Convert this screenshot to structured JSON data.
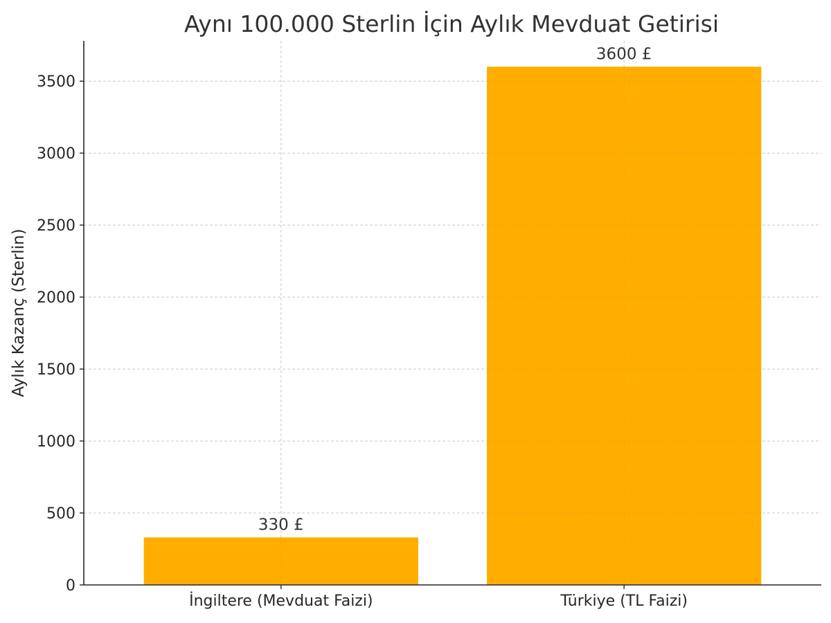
{
  "chart_data": {
    "type": "bar",
    "title": "Aynı 100.000 Sterlin İçin Aylık Mevduat Getirisi",
    "xlabel": "",
    "ylabel": "Aylık Kazanç (Sterlin)",
    "categories": [
      "İngiltere (Mevduat Faizi)",
      "Türkiye (TL Faizi)"
    ],
    "values": [
      330,
      3600
    ],
    "data_labels": [
      "330 £",
      "3600 £"
    ],
    "ylim": [
      0,
      3780
    ],
    "yticks": [
      0,
      500,
      1000,
      1500,
      2000,
      2500,
      3000,
      3500
    ],
    "ytick_labels": [
      "0",
      "500",
      "1000",
      "1500",
      "2000",
      "2500",
      "3000",
      "3500"
    ],
    "grid": true,
    "legend": false
  },
  "colors": {
    "bar": "#FFAE00",
    "text": "#333333",
    "axis": "#262626",
    "grid": "#c8c8c8"
  }
}
